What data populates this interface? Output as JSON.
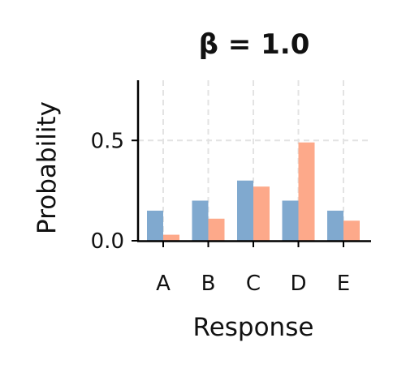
{
  "chart_data": {
    "type": "bar",
    "title": "β = 1.0",
    "xlabel": "Response",
    "ylabel": "Probability",
    "categories": [
      "A",
      "B",
      "C",
      "D",
      "E"
    ],
    "series": [
      {
        "values": [
          0.15,
          0.2,
          0.3,
          0.2,
          0.15
        ],
        "color": "#80a9cf"
      },
      {
        "values": [
          0.03,
          0.11,
          0.27,
          0.49,
          0.1
        ],
        "color": "#fda98a"
      }
    ],
    "ylim": [
      0,
      0.8
    ],
    "yticks": [
      0.0,
      0.5
    ],
    "ytick_labels": [
      "0.0",
      "0.5"
    ],
    "grid": true,
    "legend": "none"
  }
}
